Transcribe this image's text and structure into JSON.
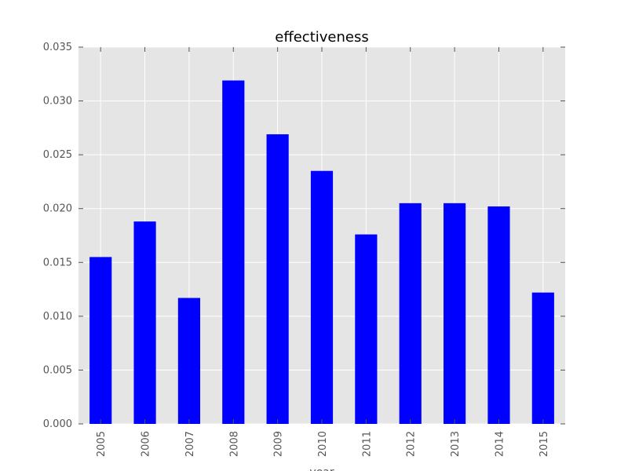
{
  "chart_data": {
    "type": "bar",
    "title": "effectiveness",
    "xlabel": "year",
    "ylabel": "",
    "categories": [
      "2005",
      "2006",
      "2007",
      "2008",
      "2009",
      "2010",
      "2011",
      "2012",
      "2013",
      "2014",
      "2015"
    ],
    "values": [
      0.0155,
      0.0188,
      0.0117,
      0.0319,
      0.0269,
      0.0235,
      0.0176,
      0.0205,
      0.0205,
      0.0202,
      0.0122
    ],
    "ylim": [
      0,
      0.035
    ],
    "yticks": [
      0.0,
      0.005,
      0.01,
      0.015,
      0.02,
      0.025,
      0.03,
      0.035
    ],
    "ytick_labels": [
      "0.000",
      "0.005",
      "0.010",
      "0.015",
      "0.020",
      "0.025",
      "0.030",
      "0.035"
    ],
    "grid": true,
    "bar_color": "#0000ff",
    "plot_background": "#e5e5e5",
    "grid_color": "#ffffff"
  }
}
